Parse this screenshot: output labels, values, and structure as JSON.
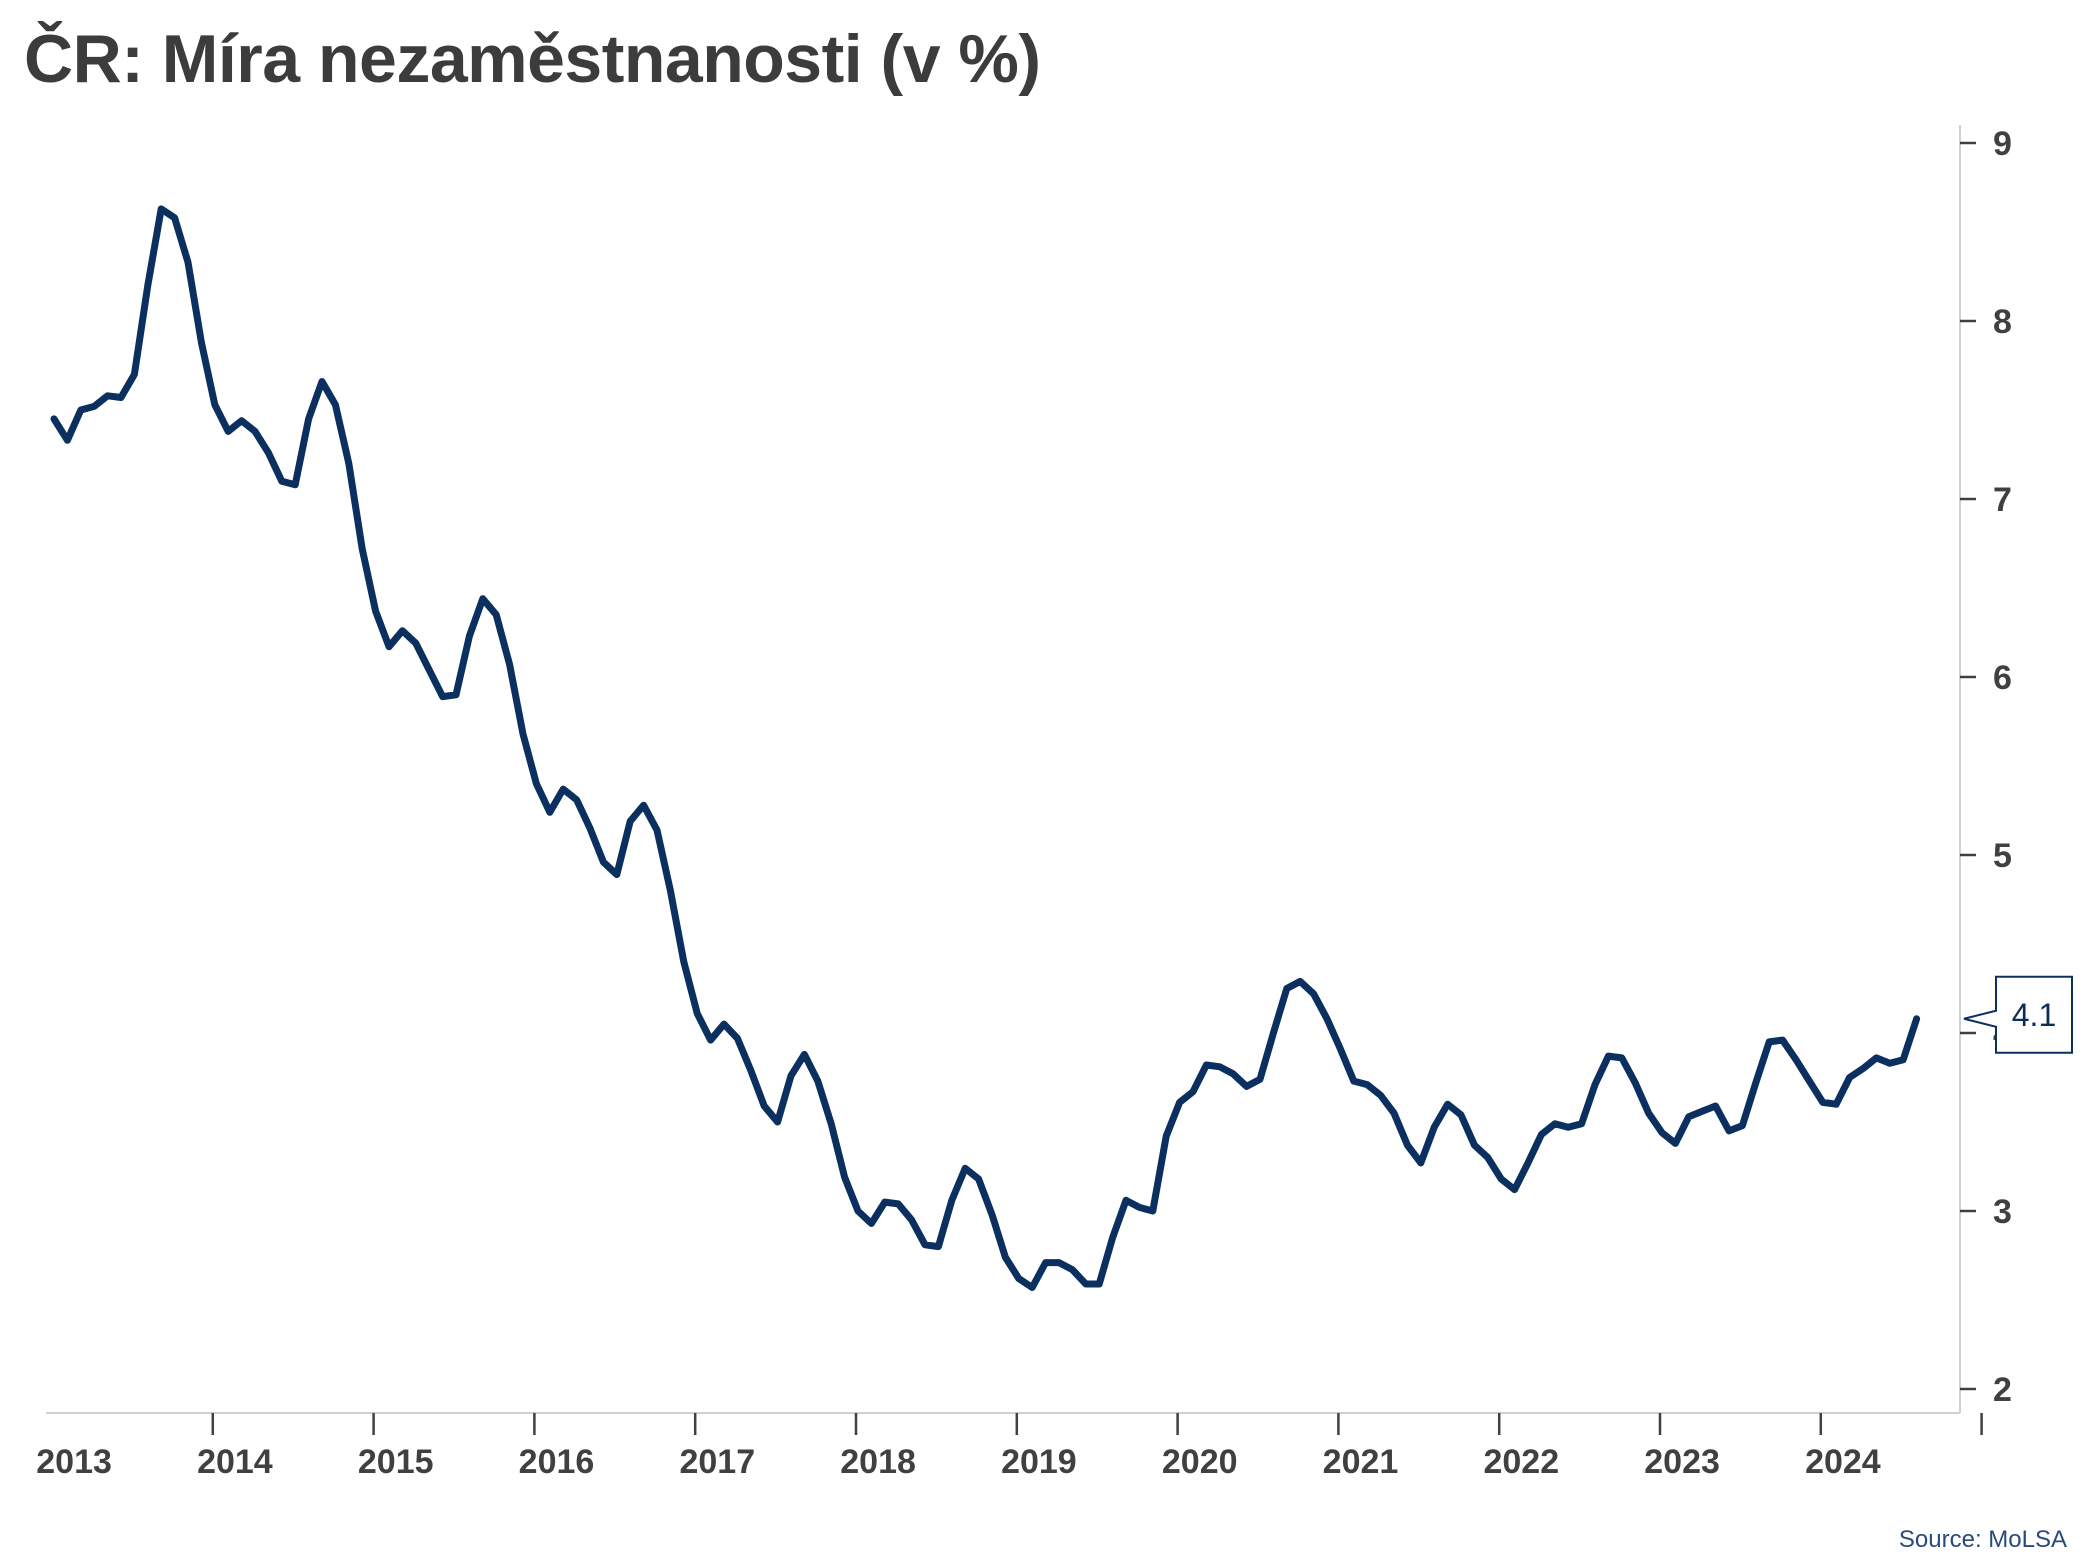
{
  "title": "ČR: Míra nezaměstnanosti (v %)",
  "source": "Source: MoLSA",
  "colors": {
    "line": "#0b3060",
    "axis": "#404040",
    "text": "#3c3c3c"
  },
  "chart_data": {
    "type": "line",
    "title": "ČR: Míra nezaměstnanosti (v %)",
    "ylim": [
      2,
      9
    ],
    "y_axis_position": "right",
    "y_ticks": [
      "2",
      "3",
      "4",
      "5",
      "6",
      "7",
      "8",
      "9"
    ],
    "x_ticks": [
      "2013",
      "2014",
      "2015",
      "2016",
      "2017",
      "2018",
      "2019",
      "2020",
      "2021",
      "2022",
      "2023",
      "2024"
    ],
    "grid": false,
    "last_value_label": "4.1",
    "series": [
      {
        "start": "2013-01",
        "frequency": "monthly",
        "values": [
          7.45,
          7.33,
          7.5,
          7.52,
          7.58,
          7.57,
          7.7,
          8.2,
          8.63,
          8.58,
          8.33,
          7.88,
          7.53,
          7.38,
          7.44,
          7.38,
          7.26,
          7.1,
          7.08,
          7.45,
          7.66,
          7.53,
          7.2,
          6.72,
          6.37,
          6.17,
          6.26,
          6.19,
          6.04,
          5.89,
          5.9,
          6.23,
          6.44,
          6.35,
          6.07,
          5.68,
          5.4,
          5.24,
          5.37,
          5.31,
          5.15,
          4.96,
          4.89,
          5.19,
          5.28,
          5.14,
          4.8,
          4.4,
          4.11,
          3.96,
          4.05,
          3.97,
          3.79,
          3.59,
          3.5,
          3.76,
          3.88,
          3.73,
          3.49,
          3.19,
          3.0,
          2.93,
          3.05,
          3.04,
          2.95,
          2.81,
          2.8,
          3.06,
          3.24,
          3.18,
          2.98,
          2.74,
          2.62,
          2.57,
          2.71,
          2.71,
          2.67,
          2.59,
          2.59,
          2.85,
          3.06,
          3.02,
          3.0,
          3.42,
          3.61,
          3.67,
          3.82,
          3.81,
          3.77,
          3.7,
          3.74,
          4.0,
          4.25,
          4.29,
          4.22,
          4.08,
          3.91,
          3.73,
          3.71,
          3.65,
          3.55,
          3.37,
          3.27,
          3.47,
          3.6,
          3.54,
          3.37,
          3.3,
          3.18,
          3.12,
          3.27,
          3.43,
          3.49,
          3.47,
          3.49,
          3.71,
          3.87,
          3.86,
          3.72,
          3.55,
          3.44,
          3.38,
          3.53,
          3.56,
          3.59,
          3.45,
          3.48,
          3.72,
          3.95,
          3.96,
          3.85,
          3.73,
          3.61,
          3.6,
          3.75,
          3.8,
          3.86,
          3.83,
          3.85,
          4.08
        ]
      }
    ]
  }
}
